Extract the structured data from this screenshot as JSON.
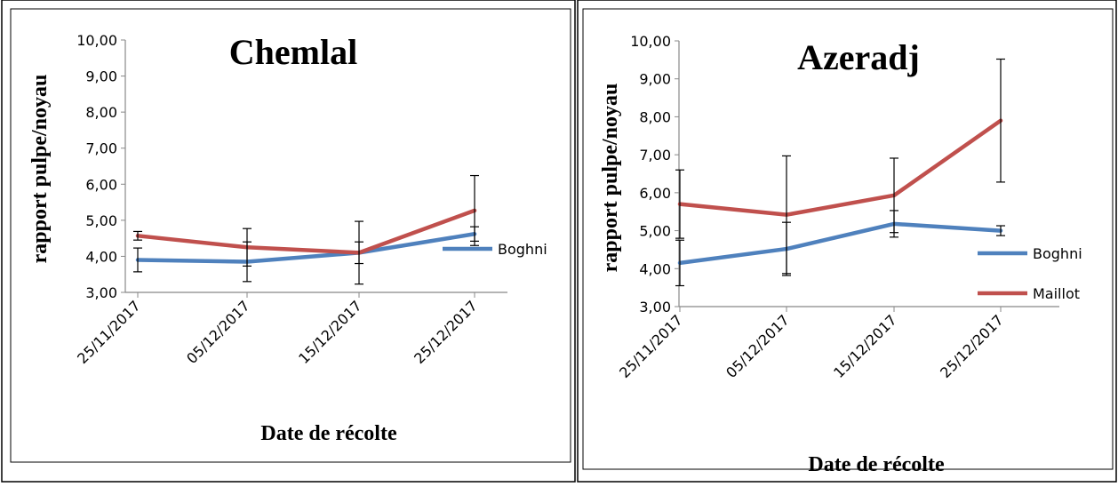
{
  "chart_data": [
    {
      "type": "line",
      "title": "Chemlal",
      "xlabel": "Date de récolte",
      "ylabel": "rapport  pulpe/noyau",
      "categories": [
        "25/11/2017",
        "05/12/2017",
        "15/12/2017",
        "25/12/2017"
      ],
      "yticks": [
        "3,00",
        "4,00",
        "5,00",
        "6,00",
        "7,00",
        "8,00",
        "9,00",
        "10,00"
      ],
      "ylim": [
        3,
        10
      ],
      "grid": false,
      "legend": [
        "Boghni"
      ],
      "series": [
        {
          "name": "Boghni",
          "color": "#4F81BD",
          "values": [
            3.9,
            3.85,
            4.1,
            4.62
          ],
          "errors": [
            0.33,
            0.55,
            0.3,
            0.2
          ]
        },
        {
          "name": "",
          "color": "#C0504D",
          "values": [
            4.57,
            4.25,
            4.1,
            5.27
          ],
          "errors": [
            0.12,
            0.52,
            0.87,
            0.97
          ]
        }
      ]
    },
    {
      "type": "line",
      "title": "Azeradj",
      "xlabel": "Date de récolte",
      "ylabel": "rapport  pulpe/noyau",
      "categories": [
        "25/11/2017",
        "05/12/2017",
        "15/12/2017",
        "25/12/2017"
      ],
      "yticks": [
        "3,00",
        "4,00",
        "5,00",
        "6,00",
        "7,00",
        "8,00",
        "9,00",
        "10,00"
      ],
      "ylim": [
        3,
        10
      ],
      "grid": false,
      "legend": [
        "Boghni",
        "Maillot"
      ],
      "series": [
        {
          "name": "Boghni",
          "color": "#4F81BD",
          "values": [
            4.15,
            4.52,
            5.18,
            5.0
          ],
          "errors": [
            0.6,
            0.7,
            0.35,
            0.13
          ]
        },
        {
          "name": "Maillot",
          "color": "#C0504D",
          "values": [
            5.7,
            5.42,
            5.93,
            7.9
          ],
          "errors": [
            0.9,
            1.55,
            0.98,
            1.62
          ]
        }
      ]
    }
  ]
}
